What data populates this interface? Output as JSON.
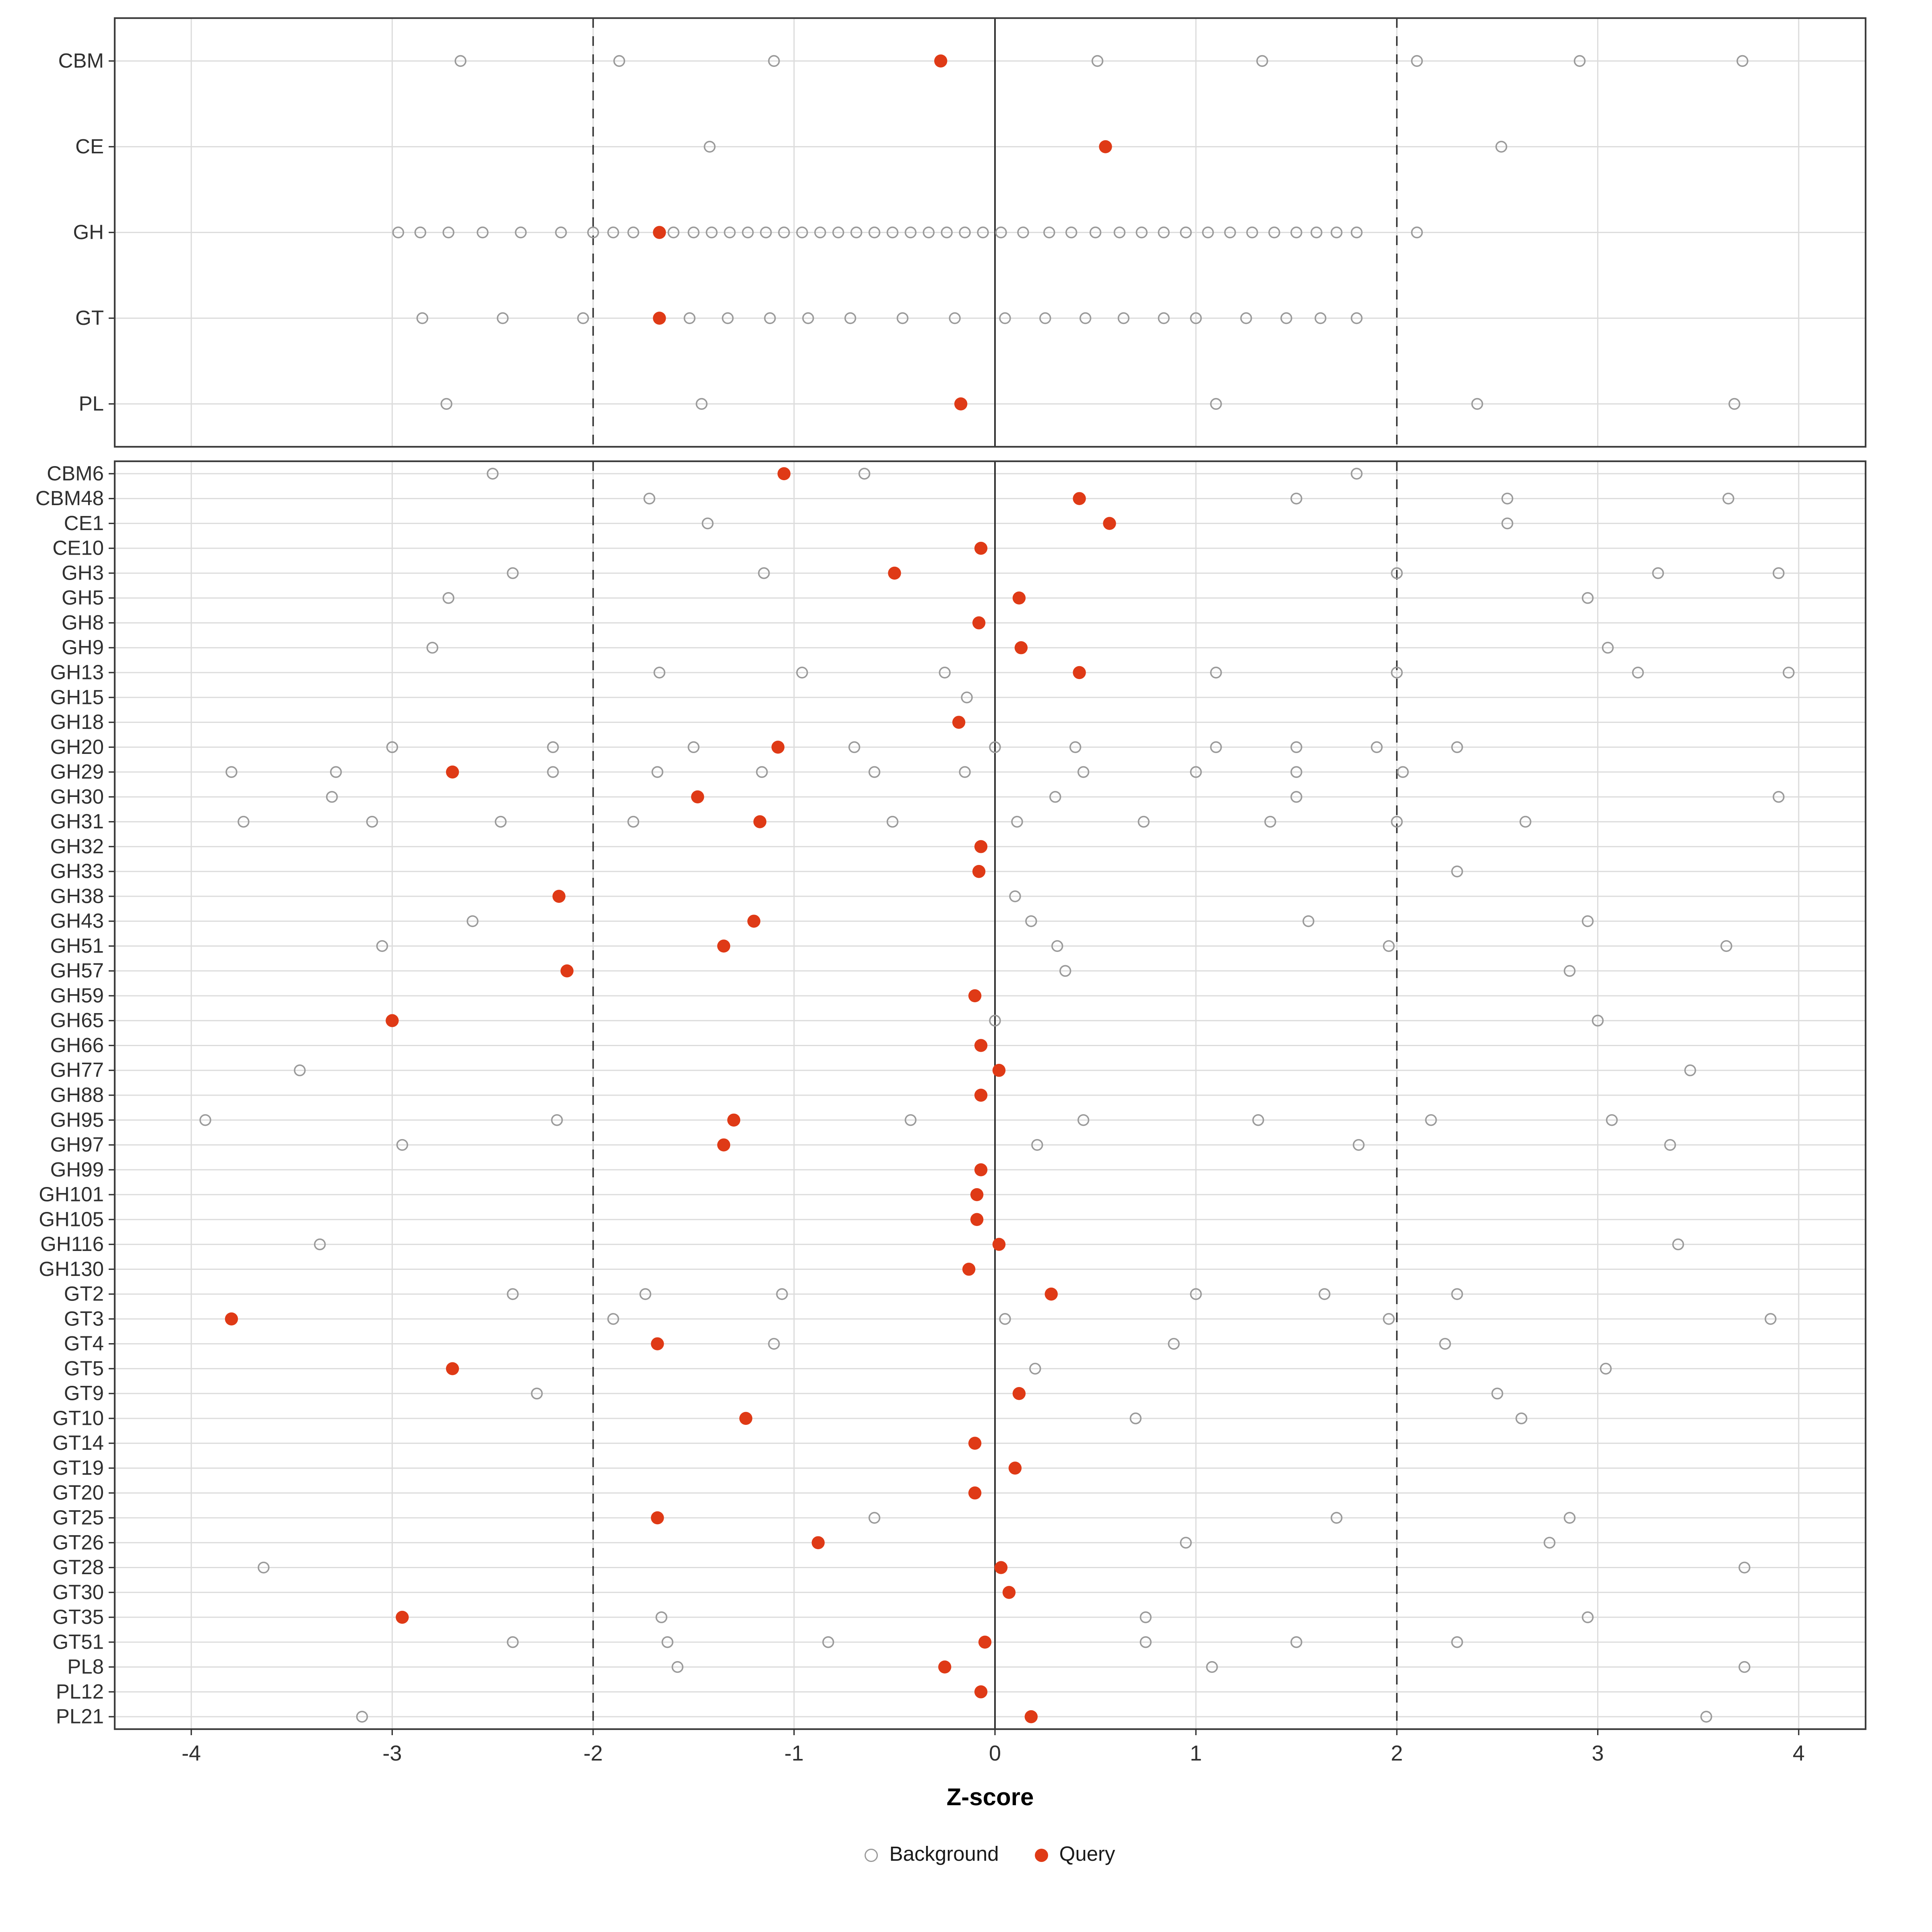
{
  "chart_data": {
    "type": "scatter",
    "title": "",
    "xlabel": "Z-score",
    "ylabel": "",
    "xlim": [
      -4.37,
      4.33
    ],
    "x_ticks": [
      -4,
      -3,
      -2,
      -1,
      0,
      1,
      2,
      3,
      4
    ],
    "reference_lines": {
      "solid": [
        0
      ],
      "dashed": [
        -2,
        2
      ]
    },
    "grid": true,
    "legend_position": "bottom",
    "legend": [
      {
        "label": "Background",
        "style": "open"
      },
      {
        "label": "Query",
        "style": "filled"
      }
    ],
    "colors": {
      "query": "#df3a16",
      "background_stroke": "#9a9a9a",
      "grid": "#dcdcdc",
      "panel_border": "#3c3c3c",
      "axis_text": "#303030",
      "reference": "#2b2b2b"
    },
    "panels": [
      {
        "name": "class-panel",
        "rows": [
          {
            "label": "CBM",
            "query": -0.27,
            "background": [
              -2.66,
              -1.87,
              -1.1,
              0.51,
              1.33,
              2.1,
              2.91,
              3.72
            ]
          },
          {
            "label": "CE",
            "query": 0.55,
            "background": [
              -1.42,
              2.52
            ]
          },
          {
            "label": "GH",
            "query": -1.67,
            "background": [
              -2.97,
              -2.86,
              -2.72,
              -2.55,
              -2.36,
              -2.16,
              -2.0,
              -1.9,
              -1.8,
              -1.6,
              -1.5,
              -1.41,
              -1.32,
              -1.23,
              -1.14,
              -1.05,
              -0.96,
              -0.87,
              -0.78,
              -0.69,
              -0.6,
              -0.51,
              -0.42,
              -0.33,
              -0.24,
              -0.15,
              -0.06,
              0.03,
              0.14,
              0.27,
              0.38,
              0.5,
              0.62,
              0.73,
              0.84,
              0.95,
              1.06,
              1.17,
              1.28,
              1.39,
              1.5,
              1.6,
              1.7,
              1.8,
              2.1
            ]
          },
          {
            "label": "GT",
            "query": -1.67,
            "background": [
              -2.85,
              -2.45,
              -2.05,
              -1.52,
              -1.33,
              -1.12,
              -0.93,
              -0.72,
              -0.46,
              -0.2,
              0.05,
              0.25,
              0.45,
              0.64,
              0.84,
              1.0,
              1.25,
              1.45,
              1.62,
              1.8
            ]
          },
          {
            "label": "PL",
            "query": -0.17,
            "background": [
              -2.73,
              -1.46,
              1.1,
              2.4,
              3.68
            ]
          }
        ]
      },
      {
        "name": "family-panel",
        "rows": [
          {
            "label": "CBM6",
            "query": -1.05,
            "background": [
              -2.5,
              -0.65,
              1.8
            ]
          },
          {
            "label": "CBM48",
            "query": 0.42,
            "background": [
              -1.72,
              1.5,
              2.55,
              3.65
            ]
          },
          {
            "label": "CE1",
            "query": 0.57,
            "background": [
              -1.43,
              2.55
            ]
          },
          {
            "label": "CE10",
            "query": -0.07,
            "background": []
          },
          {
            "label": "GH3",
            "query": -0.5,
            "background": [
              -2.4,
              -1.15,
              2.0,
              3.3,
              3.9
            ]
          },
          {
            "label": "GH5",
            "query": 0.12,
            "background": [
              -2.72,
              2.95
            ]
          },
          {
            "label": "GH8",
            "query": -0.08,
            "background": []
          },
          {
            "label": "GH9",
            "query": 0.13,
            "background": [
              -2.8,
              3.05
            ]
          },
          {
            "label": "GH13",
            "query": 0.42,
            "background": [
              -1.67,
              -0.96,
              -0.25,
              1.1,
              2.0,
              3.2,
              3.95
            ]
          },
          {
            "label": "GH15",
            "query": null,
            "background": [
              -0.14
            ]
          },
          {
            "label": "GH18",
            "query": -0.18,
            "background": []
          },
          {
            "label": "GH20",
            "query": -1.08,
            "background": [
              -3.0,
              -2.2,
              -1.5,
              -0.7,
              0.0,
              0.4,
              1.1,
              1.5,
              1.9,
              2.3
            ]
          },
          {
            "label": "GH29",
            "query": -2.7,
            "background": [
              -3.8,
              -3.28,
              -2.2,
              -1.68,
              -1.16,
              -0.6,
              -0.15,
              0.44,
              1.0,
              1.5,
              2.03
            ]
          },
          {
            "label": "GH30",
            "query": -1.48,
            "background": [
              -3.3,
              0.3,
              1.5,
              3.9
            ]
          },
          {
            "label": "GH31",
            "query": -1.17,
            "background": [
              -3.74,
              -3.1,
              -2.46,
              -1.8,
              -0.51,
              0.11,
              0.74,
              1.37,
              2.0,
              2.64
            ]
          },
          {
            "label": "GH32",
            "query": -0.07,
            "background": []
          },
          {
            "label": "GH33",
            "query": -0.08,
            "background": [
              2.3
            ]
          },
          {
            "label": "GH38",
            "query": -2.17,
            "background": [
              0.1
            ]
          },
          {
            "label": "GH43",
            "query": -1.2,
            "background": [
              -2.6,
              0.18,
              1.56,
              2.95
            ]
          },
          {
            "label": "GH51",
            "query": -1.35,
            "background": [
              -3.05,
              0.31,
              1.96,
              3.64
            ]
          },
          {
            "label": "GH57",
            "query": -2.13,
            "background": [
              0.35,
              2.86
            ]
          },
          {
            "label": "GH59",
            "query": -0.1,
            "background": []
          },
          {
            "label": "GH65",
            "query": -3.0,
            "background": [
              0.0,
              3.0
            ]
          },
          {
            "label": "GH66",
            "query": -0.07,
            "background": []
          },
          {
            "label": "GH77",
            "query": 0.02,
            "background": [
              -3.46,
              3.46
            ]
          },
          {
            "label": "GH88",
            "query": -0.07,
            "background": []
          },
          {
            "label": "GH95",
            "query": -1.3,
            "background": [
              -3.93,
              -2.18,
              -0.42,
              0.44,
              1.31,
              2.17,
              3.07
            ]
          },
          {
            "label": "GH97",
            "query": -1.35,
            "background": [
              -2.95,
              0.21,
              1.81,
              3.36
            ]
          },
          {
            "label": "GH99",
            "query": -0.07,
            "background": []
          },
          {
            "label": "GH101",
            "query": -0.09,
            "background": []
          },
          {
            "label": "GH105",
            "query": -0.09,
            "background": []
          },
          {
            "label": "GH116",
            "query": 0.02,
            "background": [
              -3.36,
              3.4
            ]
          },
          {
            "label": "GH130",
            "query": -0.13,
            "background": []
          },
          {
            "label": "GT2",
            "query": 0.28,
            "background": [
              -2.4,
              -1.74,
              -1.06,
              1.0,
              1.64,
              2.3
            ]
          },
          {
            "label": "GT3",
            "query": -3.8,
            "background": [
              -1.9,
              0.05,
              1.96,
              3.86
            ]
          },
          {
            "label": "GT4",
            "query": -1.68,
            "background": [
              -1.1,
              0.89,
              2.24
            ]
          },
          {
            "label": "GT5",
            "query": -2.7,
            "background": [
              0.2,
              3.04
            ]
          },
          {
            "label": "GT9",
            "query": 0.12,
            "background": [
              -2.28,
              2.5
            ]
          },
          {
            "label": "GT10",
            "query": -1.24,
            "background": [
              0.7,
              2.62
            ]
          },
          {
            "label": "GT14",
            "query": -0.1,
            "background": []
          },
          {
            "label": "GT19",
            "query": 0.1,
            "background": []
          },
          {
            "label": "GT20",
            "query": -0.1,
            "background": []
          },
          {
            "label": "GT25",
            "query": -1.68,
            "background": [
              -0.6,
              1.7,
              2.86
            ]
          },
          {
            "label": "GT26",
            "query": -0.88,
            "background": [
              0.95,
              2.76
            ]
          },
          {
            "label": "GT28",
            "query": 0.03,
            "background": [
              -3.64,
              3.73
            ]
          },
          {
            "label": "GT30",
            "query": 0.07,
            "background": []
          },
          {
            "label": "GT35",
            "query": -2.95,
            "background": [
              -1.66,
              0.75,
              2.95
            ]
          },
          {
            "label": "GT51",
            "query": -0.05,
            "background": [
              -2.4,
              -1.63,
              -0.83,
              0.75,
              1.5,
              2.3
            ]
          },
          {
            "label": "PL8",
            "query": -0.25,
            "background": [
              -1.58,
              1.08,
              3.73
            ]
          },
          {
            "label": "PL12",
            "query": -0.07,
            "background": []
          },
          {
            "label": "PL21",
            "query": 0.18,
            "background": [
              -3.15,
              3.54
            ]
          }
        ]
      }
    ]
  }
}
